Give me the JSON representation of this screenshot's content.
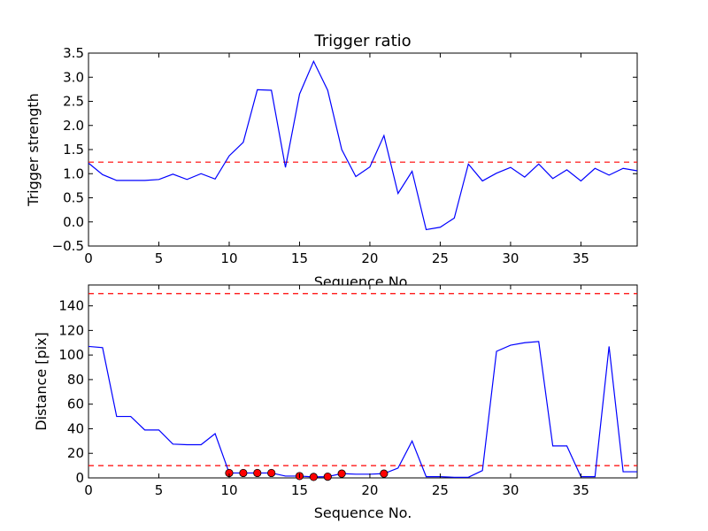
{
  "chart_data": [
    {
      "type": "line",
      "title": "Trigger ratio",
      "xlabel": "Sequence No.",
      "ylabel": "Trigger strength",
      "xlim": [
        0,
        39
      ],
      "ylim": [
        -0.5,
        3.5
      ],
      "xticks": [
        0,
        5,
        10,
        15,
        20,
        25,
        30,
        35
      ],
      "xtick_labels": [
        "0",
        "5",
        "10",
        "15",
        "20",
        "25",
        "30",
        "35"
      ],
      "yticks": [
        -0.5,
        0.0,
        0.5,
        1.0,
        1.5,
        2.0,
        2.5,
        3.0,
        3.5
      ],
      "ytick_labels": [
        "−0.5",
        "0.0",
        "0.5",
        "1.0",
        "1.5",
        "2.0",
        "2.5",
        "3.0",
        "3.5"
      ],
      "grid": false,
      "series": [
        {
          "line_color": "#0000ff",
          "x": [
            0,
            1,
            2,
            3,
            4,
            5,
            6,
            7,
            8,
            9,
            10,
            11,
            12,
            13,
            14,
            15,
            16,
            17,
            18,
            19,
            20,
            21,
            22,
            23,
            24,
            25,
            26,
            27,
            28,
            29,
            30,
            31,
            32,
            33,
            34,
            35,
            36,
            37,
            38,
            39
          ],
          "values": [
            1.22,
            0.98,
            0.86,
            0.86,
            0.86,
            0.88,
            0.99,
            0.88,
            1.0,
            0.89,
            1.37,
            1.65,
            2.74,
            2.73,
            1.13,
            2.65,
            3.33,
            2.73,
            1.5,
            0.94,
            1.14,
            1.79,
            0.59,
            1.05,
            -0.16,
            -0.11,
            0.08,
            1.2,
            0.85,
            1.01,
            1.13,
            0.93,
            1.2,
            0.9,
            1.08,
            0.85,
            1.11,
            0.97,
            1.11,
            1.06
          ]
        }
      ],
      "hlines": [
        {
          "y": 1.24,
          "color": "#ff0000",
          "style": "dashed"
        }
      ]
    },
    {
      "type": "line",
      "title": "",
      "xlabel": "Sequence No.",
      "ylabel": "Distance [pix]",
      "xlim": [
        0,
        39
      ],
      "ylim": [
        0,
        157
      ],
      "xticks": [
        0,
        5,
        10,
        15,
        20,
        25,
        30,
        35
      ],
      "xtick_labels": [
        "0",
        "5",
        "10",
        "15",
        "20",
        "25",
        "30",
        "35"
      ],
      "yticks": [
        0,
        20,
        40,
        60,
        80,
        100,
        120,
        140
      ],
      "ytick_labels": [
        "0",
        "20",
        "40",
        "60",
        "80",
        "100",
        "120",
        "140"
      ],
      "grid": false,
      "series": [
        {
          "line_color": "#0000ff",
          "x": [
            0,
            1,
            2,
            3,
            4,
            5,
            6,
            7,
            8,
            9,
            10,
            11,
            12,
            13,
            14,
            15,
            16,
            17,
            18,
            19,
            20,
            21,
            22,
            23,
            24,
            25,
            26,
            27,
            28,
            29,
            30,
            31,
            32,
            33,
            34,
            35,
            36,
            37,
            38,
            39
          ],
          "values": [
            107,
            106,
            50,
            50,
            39,
            39,
            27.5,
            27,
            27,
            36,
            4,
            4,
            4,
            4,
            1.5,
            1.5,
            0.8,
            1,
            3.5,
            3,
            3,
            3.5,
            8,
            30,
            1,
            1,
            0.5,
            0.5,
            6,
            103,
            108,
            110,
            111,
            26,
            26,
            1,
            1,
            107,
            5,
            5
          ]
        }
      ],
      "markers": {
        "color": "#ff0000",
        "edge_color": "#000000",
        "x": [
          10,
          11,
          12,
          13,
          15,
          16,
          17,
          18,
          21
        ],
        "y": [
          4,
          4,
          4,
          4,
          1.5,
          0.8,
          1,
          3.5,
          3.5
        ]
      },
      "hlines": [
        {
          "y": 150,
          "color": "#ff0000",
          "style": "dashed"
        },
        {
          "y": 10,
          "color": "#ff0000",
          "style": "dashed"
        }
      ]
    }
  ]
}
